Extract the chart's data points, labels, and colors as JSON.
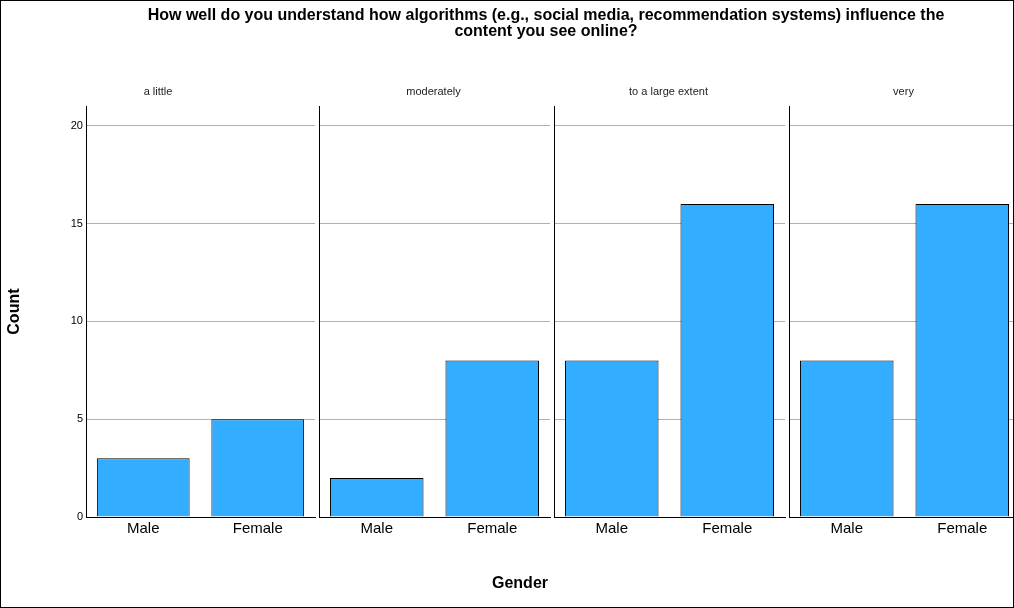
{
  "chart_data": [
    {
      "type": "bar",
      "title": "How well do you understand how algorithms (e.g., social media, recommendation systems) influence the content you see online?",
      "subtitle": "a little",
      "ylabel": "Count",
      "categories": [
        "Male",
        "Female"
      ],
      "values": [
        3,
        5
      ],
      "color": "#33adff",
      "ylim": [
        0,
        21
      ],
      "yticks": [
        0,
        5,
        10,
        15,
        20
      ],
      "grid": "y"
    },
    {
      "type": "bar",
      "subtitle": "moderately",
      "xlabel": "Gender",
      "categories": [
        "Male",
        "Female"
      ],
      "values": [
        2,
        8
      ],
      "color": "#33adff",
      "ylim": [
        0,
        21
      ],
      "yticks": [
        0,
        5,
        10,
        15,
        20
      ],
      "grid": "y",
      "tick_labels": "x"
    },
    {
      "type": "bar",
      "subtitle": "to a large extent",
      "categories": [
        "Male",
        "Female"
      ],
      "values": [
        8,
        16
      ],
      "color": "#33adff",
      "ylim": [
        0,
        21
      ],
      "yticks": [
        0,
        5,
        10,
        15,
        20
      ],
      "grid": "y",
      "tick_labels": "x"
    },
    {
      "type": "bar",
      "subtitle": "very",
      "categories": [
        "Male",
        "Female"
      ],
      "values": [
        8,
        16
      ],
      "color": "#33adff",
      "ylim": [
        0,
        21
      ],
      "yticks": [
        0,
        5,
        10,
        15,
        20
      ],
      "grid": "y",
      "tick_labels": "x"
    }
  ]
}
